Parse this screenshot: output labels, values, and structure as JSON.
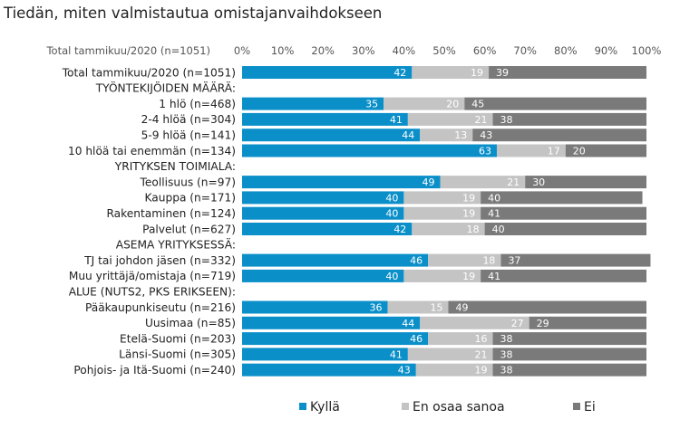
{
  "chart_data": {
    "type": "bar",
    "orientation": "horizontal",
    "stacked": true,
    "title": "Tiedän, miten valmistautua omistajanvaihdokseen",
    "axis_header": "Total tammikuu/2020  (n=1051)",
    "xlim": [
      0,
      100
    ],
    "x_ticks": [
      "0%",
      "10%",
      "20%",
      "30%",
      "40%",
      "50%",
      "60%",
      "70%",
      "80%",
      "90%",
      "100%"
    ],
    "grid": false,
    "legend_position": "bottom",
    "categories": [
      "Total tammikuu/2020 (n=1051)",
      "TYÖNTEKIJÖIDEN MÄÄRÄ:",
      "1 hlö (n=468)",
      "2-4 hlöä (n=304)",
      "5-9 hlöä (n=141)",
      "10 hlöä tai enemmän (n=134)",
      "YRITYKSEN TOIMIALA:",
      "Teollisuus (n=97)",
      "Kauppa (n=171)",
      "Rakentaminen (n=124)",
      "Palvelut (n=627)",
      "ASEMA YRITYKSESSÄ:",
      "TJ tai johdon jäsen (n=332)",
      "Muu yrittäjä/omistaja (n=719)",
      "ALUE (NUTS2, PKS ERIKSEEN):",
      "Pääkaupunkiseutu (n=216)",
      "Uusimaa (n=85)",
      "Etelä-Suomi (n=203)",
      "Länsi-Suomi (n=305)",
      "Pohjois- ja Itä-Suomi (n=240)"
    ],
    "series": [
      {
        "name": "Kyllä",
        "color": "#0a8fc9",
        "label_color": "#ffffff",
        "values": [
          42,
          null,
          35,
          41,
          44,
          63,
          null,
          49,
          40,
          40,
          42,
          null,
          46,
          40,
          null,
          36,
          44,
          46,
          41,
          43
        ]
      },
      {
        "name": "En osaa sanoa",
        "color": "#c4c4c4",
        "label_color": "#ffffff",
        "values": [
          19,
          null,
          20,
          21,
          13,
          17,
          null,
          21,
          19,
          19,
          18,
          null,
          18,
          19,
          null,
          15,
          27,
          16,
          21,
          19
        ]
      },
      {
        "name": "Ei",
        "color": "#7a7a7a",
        "label_color": "#ffffff",
        "values": [
          39,
          null,
          45,
          38,
          43,
          20,
          null,
          30,
          40,
          41,
          40,
          null,
          37,
          41,
          null,
          49,
          29,
          38,
          38,
          38
        ]
      }
    ]
  }
}
